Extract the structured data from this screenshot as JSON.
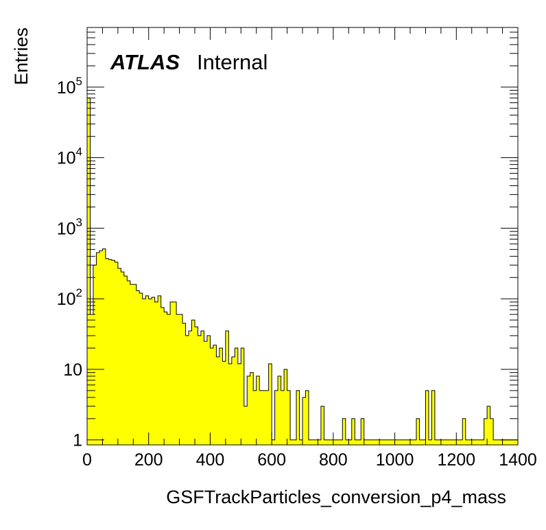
{
  "chart_data": {
    "type": "bar",
    "style": "histogram",
    "fill_color": "#ffff00",
    "edge_color": "#000000",
    "xlabel": "GSFTrackParticles_conversion_p4_mass",
    "ylabel": "Entries",
    "xlim": [
      0,
      1400
    ],
    "ylim": [
      0.85,
      700000
    ],
    "y_scale": "log",
    "grid": false,
    "legend": "none",
    "x_ticks": [
      "0",
      "200",
      "400",
      "600",
      "800",
      "1000",
      "1200",
      "1400"
    ],
    "y_ticks": [
      {
        "value": 1,
        "base": "1",
        "exp": ""
      },
      {
        "value": 10,
        "base": "10",
        "exp": ""
      },
      {
        "value": 100,
        "base": "10",
        "exp": "2"
      },
      {
        "value": 1000,
        "base": "10",
        "exp": "3"
      },
      {
        "value": 10000,
        "base": "10",
        "exp": "4"
      },
      {
        "value": 100000,
        "base": "10",
        "exp": "5"
      }
    ],
    "annotations": {
      "experiment": "ATLAS",
      "status": "Internal"
    },
    "bin_width": 10,
    "bin_edges_start": 0,
    "values": [
      70000,
      60,
      300,
      450,
      480,
      510,
      370,
      360,
      350,
      330,
      270,
      240,
      210,
      180,
      160,
      160,
      130,
      120,
      100,
      110,
      100,
      105,
      90,
      110,
      75,
      65,
      60,
      90,
      90,
      60,
      60,
      45,
      30,
      35,
      50,
      40,
      30,
      35,
      25,
      30,
      20,
      22,
      15,
      20,
      13,
      35,
      12,
      15,
      20,
      12,
      20,
      3,
      8,
      9,
      5,
      8,
      5,
      5,
      5,
      12,
      1,
      5,
      8,
      5,
      10,
      5,
      1,
      1,
      5,
      1,
      4,
      5,
      1,
      1,
      1,
      1,
      3,
      1,
      1,
      1,
      1,
      1,
      1,
      2,
      1,
      1,
      2,
      1,
      1,
      2,
      1,
      1,
      1,
      1,
      1,
      1,
      1,
      1,
      1,
      1,
      1,
      1,
      1,
      1,
      1,
      1,
      1,
      2,
      1,
      1,
      5,
      1,
      5,
      1,
      1,
      1,
      1,
      1,
      1,
      1,
      1,
      1,
      2,
      1,
      1,
      1,
      1,
      1,
      1,
      2,
      3,
      2,
      1,
      1,
      1,
      1,
      1,
      1,
      1,
      1
    ]
  }
}
